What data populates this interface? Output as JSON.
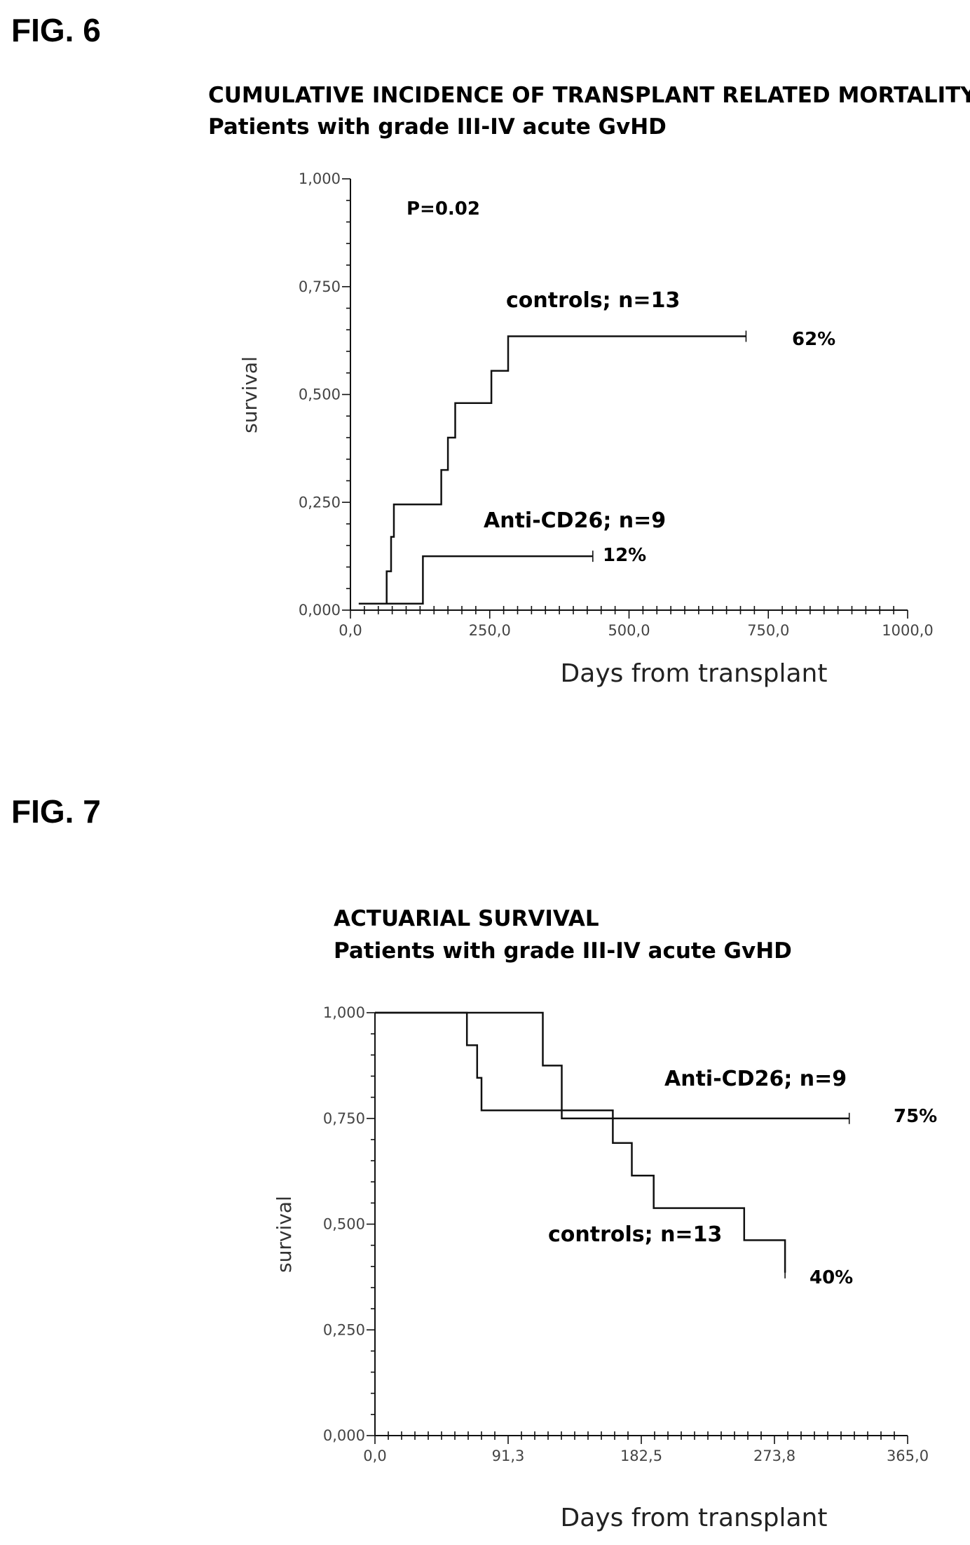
{
  "figures": [
    {
      "label": "FIG. 6",
      "chart_data": {
        "type": "line",
        "title": "CUMULATIVE INCIDENCE OF TRANSPLANT RELATED MORTALITY",
        "subtitle": "Patients with grade III-IV acute GvHD",
        "xlabel": "Days from transplant",
        "ylabel": "survival",
        "xlim": [
          0,
          1000
        ],
        "ylim": [
          0,
          1
        ],
        "x_tick_labels": [
          "0,0",
          "250,0",
          "500,0",
          "750,0",
          "1000,0"
        ],
        "y_tick_labels": [
          "0,000",
          "0,250",
          "0,500",
          "0,750",
          "1,000"
        ],
        "annotation": "P=0.02",
        "series": [
          {
            "name": "controls; n=13",
            "end_label": "62%",
            "points": [
              [
                15,
                0.015
              ],
              [
                65,
                0.015
              ],
              [
                65,
                0.09
              ],
              [
                73,
                0.09
              ],
              [
                73,
                0.17
              ],
              [
                78,
                0.17
              ],
              [
                78,
                0.245
              ],
              [
                163,
                0.245
              ],
              [
                163,
                0.325
              ],
              [
                175,
                0.325
              ],
              [
                175,
                0.4
              ],
              [
                188,
                0.4
              ],
              [
                188,
                0.48
              ],
              [
                253,
                0.48
              ],
              [
                253,
                0.555
              ],
              [
                283,
                0.555
              ],
              [
                283,
                0.635
              ],
              [
                710,
                0.635
              ]
            ]
          },
          {
            "name": "Anti-CD26; n=9",
            "end_label": "12%",
            "points": [
              [
                15,
                0.015
              ],
              [
                130,
                0.015
              ],
              [
                130,
                0.125
              ],
              [
                435,
                0.125
              ]
            ]
          }
        ]
      }
    },
    {
      "label": "FIG. 7",
      "chart_data": {
        "type": "line",
        "title": "ACTUARIAL SURVIVAL",
        "subtitle": "Patients with grade III-IV acute GvHD",
        "xlabel": "Days from transplant",
        "ylabel": "survival",
        "xlim": [
          0,
          365
        ],
        "ylim": [
          0,
          1
        ],
        "x_tick_labels": [
          "0,0",
          "91,3",
          "182,5",
          "273,8",
          "365,0"
        ],
        "y_tick_labels": [
          "0,000",
          "0,250",
          "0,500",
          "0,750",
          "1,000"
        ],
        "series": [
          {
            "name": "Anti-CD26; n=9",
            "end_label": "75%",
            "points": [
              [
                0,
                1.0
              ],
              [
                115,
                1.0
              ],
              [
                115,
                0.875
              ],
              [
                128,
                0.875
              ],
              [
                128,
                0.75
              ],
              [
                325,
                0.75
              ]
            ]
          },
          {
            "name": "controls; n=13",
            "end_label": "40%",
            "points": [
              [
                0,
                1.0
              ],
              [
                63,
                1.0
              ],
              [
                63,
                0.923
              ],
              [
                70,
                0.923
              ],
              [
                70,
                0.846
              ],
              [
                73,
                0.846
              ],
              [
                73,
                0.769
              ],
              [
                163,
                0.769
              ],
              [
                163,
                0.692
              ],
              [
                176,
                0.692
              ],
              [
                176,
                0.615
              ],
              [
                191,
                0.615
              ],
              [
                191,
                0.538
              ],
              [
                253,
                0.538
              ],
              [
                253,
                0.462
              ],
              [
                281,
                0.462
              ],
              [
                281,
                0.385
              ]
            ]
          }
        ]
      }
    }
  ]
}
